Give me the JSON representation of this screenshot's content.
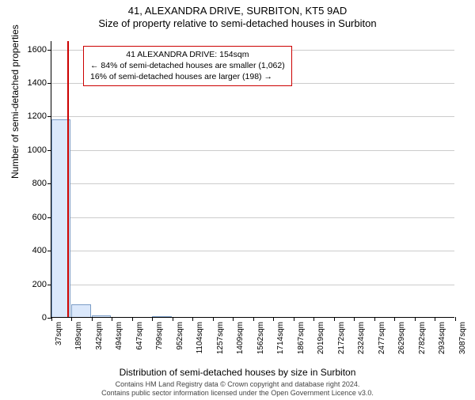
{
  "title_main": "41, ALEXANDRA DRIVE, SURBITON, KT5 9AD",
  "title_sub": "Size of property relative to semi-detached houses in Surbiton",
  "y_axis_label": "Number of semi-detached properties",
  "x_axis_label": "Distribution of semi-detached houses by size in Surbiton",
  "footer_line1": "Contains HM Land Registry data © Crown copyright and database right 2024.",
  "footer_line2": "Contains public sector information licensed under the Open Government Licence v3.0.",
  "chart": {
    "type": "bar",
    "background_color": "#ffffff",
    "grid_color": "#cccccc",
    "axis_color": "#000000",
    "bar_fill": "#dbe8fb",
    "bar_border": "#7a9cc6",
    "marker_color": "#cc0000",
    "info_border": "#cc0000",
    "y_ticks": [
      0,
      200,
      400,
      600,
      800,
      1000,
      1200,
      1400,
      1600
    ],
    "y_max": 1650,
    "x_ticks": [
      "37sqm",
      "189sqm",
      "342sqm",
      "494sqm",
      "647sqm",
      "799sqm",
      "952sqm",
      "1104sqm",
      "1257sqm",
      "1409sqm",
      "1562sqm",
      "1714sqm",
      "1867sqm",
      "2019sqm",
      "2172sqm",
      "2324sqm",
      "2477sqm",
      "2629sqm",
      "2782sqm",
      "2934sqm",
      "3087sqm"
    ],
    "x_min": 37,
    "x_max": 3087,
    "marker_x": 154,
    "bars": [
      {
        "x_start": 37,
        "x_end": 189,
        "value": 1180
      },
      {
        "x_start": 189,
        "x_end": 342,
        "value": 75
      },
      {
        "x_start": 342,
        "x_end": 494,
        "value": 8
      },
      {
        "x_start": 799,
        "x_end": 952,
        "value": 3
      }
    ],
    "info_box": {
      "line1": "41 ALEXANDRA DRIVE: 154sqm",
      "line2": "← 84% of semi-detached houses are smaller (1,062)",
      "line3": "16% of semi-detached houses are larger (198) →"
    },
    "label_fontsize": 12,
    "tick_fontsize": 11
  }
}
